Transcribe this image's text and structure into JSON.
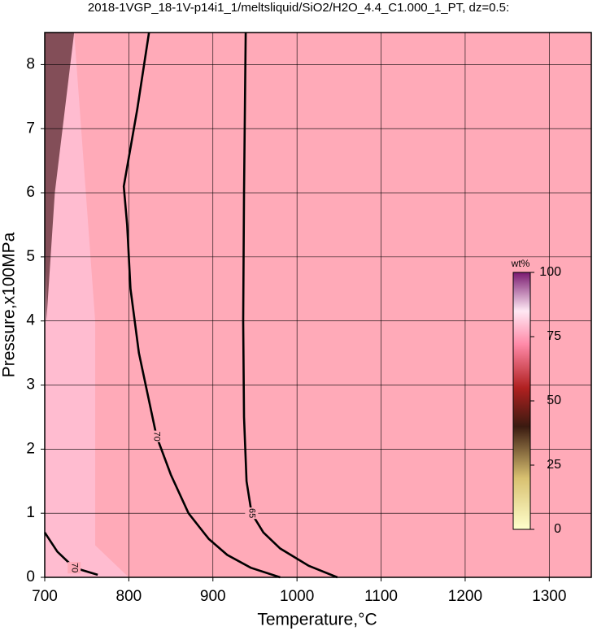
{
  "chart_data": {
    "type": "contour",
    "title": "2018-1VGP_18-1V-p14i1_1/meltsliquid/SiO2/H2O_4.4_C1.000_1_PT, dz=0.5:",
    "x_label": "Temperature,°C",
    "y_label": "Pressure,x100MPa",
    "xlim": [
      700,
      1350
    ],
    "ylim": [
      0,
      8.5
    ],
    "xticks": [
      700,
      800,
      900,
      1000,
      1100,
      1200,
      1300
    ],
    "yticks": [
      0,
      1,
      2,
      3,
      4,
      5,
      6,
      7,
      8
    ],
    "grid": true,
    "background": "#ffaab8",
    "contours": [
      {
        "level": 70,
        "x": [
          824,
          810,
          794,
          798,
          802,
          812,
          833,
          850,
          871,
          895,
          917,
          945,
          980
        ],
        "y": [
          8.5,
          7.3,
          6.1,
          5.5,
          4.5,
          3.5,
          2.2,
          1.6,
          1.0,
          0.6,
          0.35,
          0.15,
          0
        ]
      },
      {
        "level": 65,
        "x": [
          939,
          937,
          936,
          937,
          940,
          946,
          960,
          980,
          1014,
          1048
        ],
        "y": [
          8.5,
          6,
          4,
          2.5,
          1.5,
          1.0,
          0.7,
          0.45,
          0.18,
          0
        ]
      },
      {
        "level": 70,
        "x": [
          700,
          715,
          735,
          763
        ],
        "y": [
          0.7,
          0.4,
          0.15,
          0.04
        ]
      }
    ],
    "colorbar": {
      "label": "wt%",
      "lim": [
        0,
        100
      ],
      "ticks": [
        0,
        25,
        50,
        75,
        100
      ]
    }
  }
}
